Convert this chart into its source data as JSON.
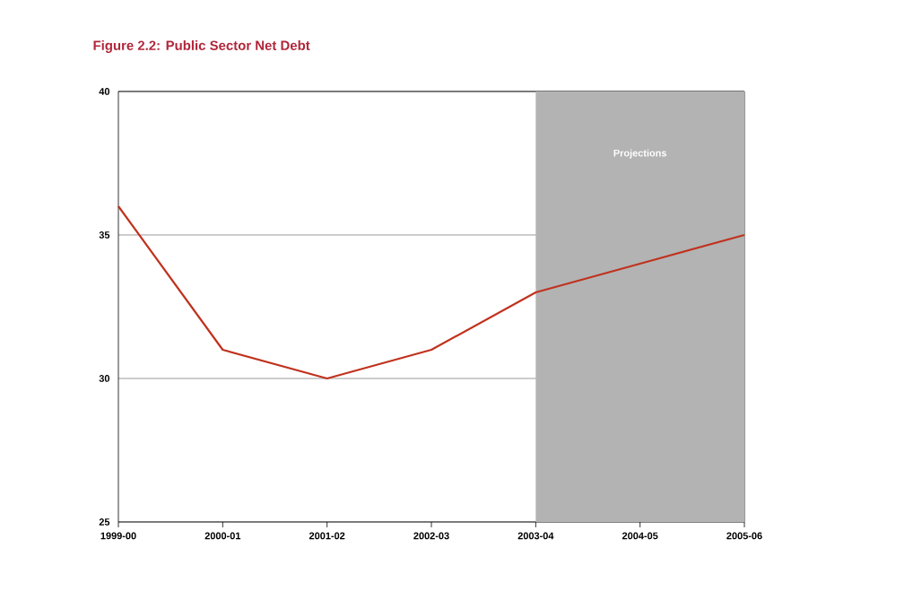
{
  "chart_data": {
    "type": "line",
    "title": "Figure 2.2:  Public Sector Net Debt",
    "categories": [
      "1999-00",
      "2000-01",
      "2001-02",
      "2002-03",
      "2003-04",
      "2004-05",
      "2005-06"
    ],
    "series": [
      {
        "color": "#c0321e",
        "values": [
          36,
          31,
          30,
          31,
          33,
          34,
          35
        ]
      }
    ],
    "ylim": [
      25,
      40
    ],
    "yticks": [
      25,
      30,
      35,
      40
    ],
    "grid": "y",
    "bands": [
      {
        "axis": "x",
        "from": "2003-04",
        "to": "2005-06",
        "label": "Projections",
        "color": "#b3b3b3"
      }
    ]
  }
}
